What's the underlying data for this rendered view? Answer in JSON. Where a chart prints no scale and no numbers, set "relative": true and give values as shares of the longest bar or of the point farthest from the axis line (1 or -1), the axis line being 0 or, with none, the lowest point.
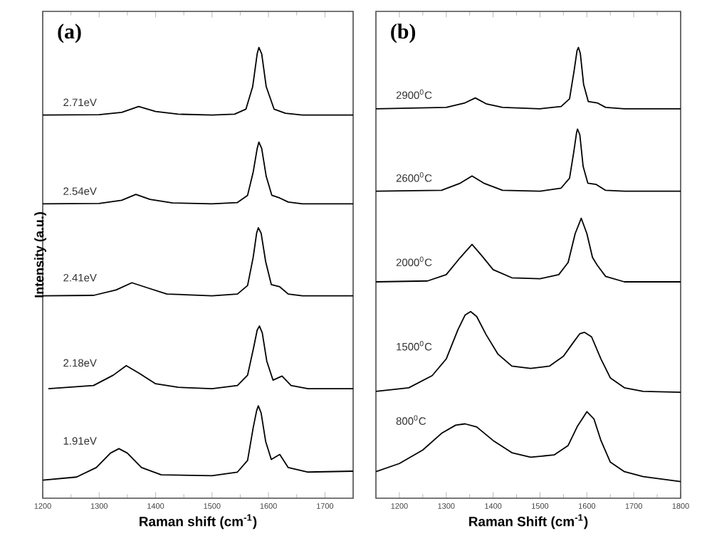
{
  "chart_data": [
    {
      "type": "line",
      "relative": true,
      "annotations": [
        "(a)"
      ],
      "xlabel": "Raman shift (cm$^{-1}$)",
      "ylabel": "Intensity (a.u.)",
      "xlim": [
        1200,
        1750
      ],
      "xticks": [
        1200,
        1300,
        1400,
        1500,
        1600,
        1700
      ],
      "tick_labels": "x",
      "series": [
        {
          "name": "2.71eV",
          "color": "#000000",
          "x": [
            1200,
            1300,
            1340,
            1370,
            1400,
            1440,
            1500,
            1540,
            1560,
            1572,
            1580,
            1583,
            1588,
            1596,
            1610,
            1630,
            1660,
            1750
          ],
          "values": [
            0.85,
            0.851,
            0.856,
            0.869,
            0.858,
            0.852,
            0.85,
            0.852,
            0.863,
            0.913,
            0.986,
            1.0,
            0.986,
            0.913,
            0.863,
            0.854,
            0.85,
            0.85
          ]
        },
        {
          "name": "2.54eV",
          "color": "#000000",
          "x": [
            1200,
            1300,
            1340,
            1365,
            1390,
            1430,
            1500,
            1545,
            1563,
            1573,
            1580,
            1583,
            1588,
            1596,
            1606,
            1620,
            1635,
            1660,
            1750
          ],
          "values": [
            0.653,
            0.654,
            0.661,
            0.674,
            0.663,
            0.655,
            0.653,
            0.656,
            0.672,
            0.724,
            0.776,
            0.79,
            0.776,
            0.714,
            0.672,
            0.666,
            0.657,
            0.653,
            0.653
          ]
        },
        {
          "name": "2.41eV",
          "color": "#000000",
          "x": [
            1200,
            1290,
            1330,
            1358,
            1385,
            1420,
            1500,
            1545,
            1563,
            1573,
            1579,
            1582,
            1587,
            1595,
            1605,
            1620,
            1635,
            1660,
            1750
          ],
          "values": [
            0.449,
            0.45,
            0.462,
            0.478,
            0.467,
            0.453,
            0.449,
            0.453,
            0.472,
            0.535,
            0.588,
            0.6,
            0.588,
            0.525,
            0.474,
            0.469,
            0.453,
            0.449,
            0.449
          ]
        },
        {
          "name": "2.18eV",
          "color": "#000000",
          "x": [
            1210,
            1290,
            1325,
            1348,
            1370,
            1400,
            1440,
            1500,
            1545,
            1563,
            1574,
            1580,
            1584,
            1589,
            1597,
            1608,
            1624,
            1640,
            1670,
            1750
          ],
          "values": [
            0.243,
            0.25,
            0.273,
            0.294,
            0.278,
            0.254,
            0.246,
            0.243,
            0.25,
            0.273,
            0.336,
            0.373,
            0.382,
            0.367,
            0.304,
            0.262,
            0.271,
            0.25,
            0.243,
            0.243
          ]
        },
        {
          "name": "1.91eV",
          "color": "#000000",
          "x": [
            1200,
            1260,
            1295,
            1320,
            1335,
            1350,
            1375,
            1410,
            1500,
            1545,
            1563,
            1573,
            1579,
            1582,
            1587,
            1595,
            1605,
            1620,
            1635,
            1670,
            1750
          ],
          "values": [
            0.04,
            0.047,
            0.068,
            0.1,
            0.11,
            0.1,
            0.068,
            0.052,
            0.05,
            0.058,
            0.084,
            0.157,
            0.194,
            0.205,
            0.189,
            0.126,
            0.086,
            0.097,
            0.068,
            0.058,
            0.06
          ]
        }
      ]
    },
    {
      "type": "line",
      "relative": true,
      "annotations": [
        "(b)"
      ],
      "xlabel": "Raman Shift (cm$^{-1}$)",
      "xlim": [
        1150,
        1800
      ],
      "xticks": [
        1200,
        1300,
        1400,
        1500,
        1600,
        1700,
        1800
      ],
      "tick_labels": "x",
      "series": [
        {
          "name": "2900$^{0}$C",
          "color": "#000000",
          "x": [
            1150,
            1300,
            1340,
            1362,
            1385,
            1420,
            1500,
            1545,
            1563,
            1573,
            1579,
            1582,
            1586,
            1593,
            1603,
            1622,
            1640,
            1680,
            1800
          ],
          "values": [
            0.864,
            0.867,
            0.877,
            0.888,
            0.875,
            0.867,
            0.864,
            0.869,
            0.886,
            0.95,
            0.993,
            1.0,
            0.987,
            0.918,
            0.88,
            0.877,
            0.867,
            0.864,
            0.864
          ]
        },
        {
          "name": "2600$^{0}$C",
          "color": "#000000",
          "x": [
            1150,
            1290,
            1330,
            1355,
            1380,
            1420,
            1500,
            1545,
            1563,
            1572,
            1578,
            1580,
            1585,
            1592,
            1602,
            1620,
            1640,
            1680,
            1800
          ],
          "values": [
            0.681,
            0.683,
            0.699,
            0.715,
            0.699,
            0.683,
            0.681,
            0.688,
            0.71,
            0.768,
            0.811,
            0.819,
            0.806,
            0.736,
            0.699,
            0.696,
            0.683,
            0.681,
            0.681
          ]
        },
        {
          "name": "2000$^{0}$C",
          "color": "#000000",
          "x": [
            1150,
            1260,
            1300,
            1330,
            1355,
            1375,
            1400,
            1440,
            1500,
            1540,
            1560,
            1575,
            1588,
            1600,
            1612,
            1622,
            1640,
            1680,
            1800
          ],
          "values": [
            0.48,
            0.482,
            0.496,
            0.534,
            0.563,
            0.539,
            0.507,
            0.489,
            0.487,
            0.496,
            0.523,
            0.587,
            0.621,
            0.587,
            0.534,
            0.517,
            0.492,
            0.48,
            0.48
          ]
        },
        {
          "name": "1500$^{0}$C",
          "color": "#000000",
          "x": [
            1150,
            1220,
            1270,
            1300,
            1325,
            1340,
            1352,
            1365,
            1385,
            1410,
            1440,
            1480,
            1520,
            1550,
            1570,
            1585,
            1595,
            1610,
            1630,
            1650,
            1680,
            1720,
            1800
          ],
          "values": [
            0.237,
            0.245,
            0.272,
            0.309,
            0.374,
            0.406,
            0.414,
            0.403,
            0.363,
            0.32,
            0.293,
            0.288,
            0.293,
            0.315,
            0.344,
            0.365,
            0.368,
            0.358,
            0.309,
            0.267,
            0.245,
            0.237,
            0.235
          ]
        },
        {
          "name": "800$^{0}$C",
          "color": "#000000",
          "x": [
            1150,
            1200,
            1250,
            1290,
            1320,
            1340,
            1365,
            1400,
            1440,
            1480,
            1530,
            1560,
            1580,
            1600,
            1615,
            1630,
            1650,
            1680,
            1720,
            1800
          ],
          "values": [
            0.059,
            0.077,
            0.107,
            0.144,
            0.162,
            0.165,
            0.158,
            0.128,
            0.101,
            0.091,
            0.096,
            0.117,
            0.16,
            0.192,
            0.176,
            0.128,
            0.08,
            0.059,
            0.048,
            0.037
          ]
        }
      ]
    }
  ]
}
